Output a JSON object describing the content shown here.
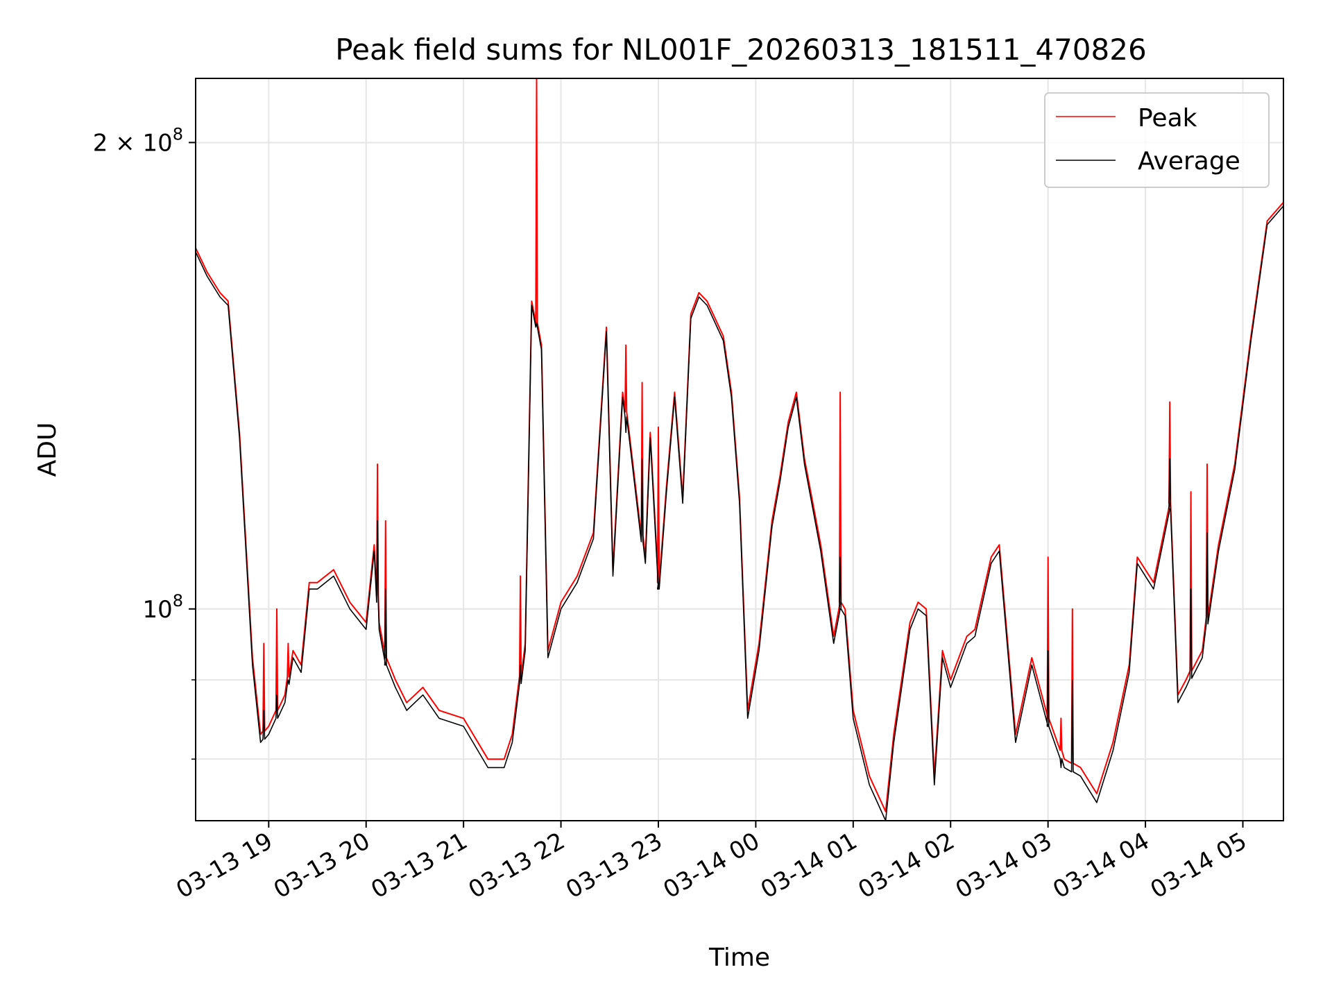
{
  "chart_data": {
    "type": "line",
    "title": "Peak field sums for NL001F_20260313_181511_470826",
    "xlabel": "Time",
    "ylabel": "ADU",
    "x_range": [
      "03-13 18:15",
      "03-14 05:25"
    ],
    "y_range": [
      73000000,
      220000000
    ],
    "y_scale": "log",
    "grid": true,
    "legend_position": "top-right",
    "x_ticks": [
      {
        "value": "03-13 19:00",
        "label": "03-13 19"
      },
      {
        "value": "03-13 20:00",
        "label": "03-13 20"
      },
      {
        "value": "03-13 21:00",
        "label": "03-13 21"
      },
      {
        "value": "03-13 22:00",
        "label": "03-13 22"
      },
      {
        "value": "03-13 23:00",
        "label": "03-13 23"
      },
      {
        "value": "03-14 00:00",
        "label": "03-14 00"
      },
      {
        "value": "03-14 01:00",
        "label": "03-14 01"
      },
      {
        "value": "03-14 02:00",
        "label": "03-14 02"
      },
      {
        "value": "03-14 03:00",
        "label": "03-14 03"
      },
      {
        "value": "03-14 04:00",
        "label": "03-14 04"
      },
      {
        "value": "03-14 05:00",
        "label": "03-14 05"
      }
    ],
    "y_ticks_major": [
      {
        "value": 100000000,
        "base": "10",
        "exp": "8",
        "coef": ""
      },
      {
        "value": 200000000,
        "base": "10",
        "exp": "8",
        "coef": "2 × "
      }
    ],
    "y_ticks_minor": [
      80000000,
      90000000
    ],
    "x": [
      "03-13 18:15",
      "03-13 18:22",
      "03-13 18:30",
      "03-13 18:35",
      "03-13 18:42",
      "03-13 18:50",
      "03-13 18:55",
      "03-13 19:00",
      "03-13 19:10",
      "03-13 19:15",
      "03-13 19:20",
      "03-13 19:25",
      "03-13 19:30",
      "03-13 19:40",
      "03-13 19:50",
      "03-13 20:00",
      "03-13 20:05",
      "03-13 20:08",
      "03-13 20:12",
      "03-13 20:18",
      "03-13 20:25",
      "03-13 20:35",
      "03-13 20:45",
      "03-13 21:00",
      "03-13 21:15",
      "03-13 21:25",
      "03-13 21:30",
      "03-13 21:38",
      "03-13 21:42",
      "03-13 21:48",
      "03-13 21:52",
      "03-13 22:00",
      "03-13 22:10",
      "03-13 22:20",
      "03-13 22:28",
      "03-13 22:32",
      "03-13 22:38",
      "03-13 22:42",
      "03-13 22:48",
      "03-13 22:52",
      "03-13 22:55",
      "03-13 23:00",
      "03-13 23:05",
      "03-13 23:10",
      "03-13 23:15",
      "03-13 23:20",
      "03-13 23:25",
      "03-13 23:30",
      "03-13 23:40",
      "03-13 23:45",
      "03-13 23:50",
      "03-13 23:55",
      "03-14 00:02",
      "03-14 00:10",
      "03-14 00:15",
      "03-14 00:20",
      "03-14 00:25",
      "03-14 00:30",
      "03-14 00:40",
      "03-14 00:48",
      "03-14 00:52",
      "03-14 00:55",
      "03-14 01:00",
      "03-14 01:10",
      "03-14 01:20",
      "03-14 01:25",
      "03-14 01:35",
      "03-14 01:40",
      "03-14 01:45",
      "03-14 01:50",
      "03-14 01:55",
      "03-14 02:00",
      "03-14 02:10",
      "03-14 02:15",
      "03-14 02:25",
      "03-14 02:30",
      "03-14 02:40",
      "03-14 02:50",
      "03-14 03:00",
      "03-14 03:10",
      "03-14 03:20",
      "03-14 03:30",
      "03-14 03:40",
      "03-14 03:50",
      "03-14 03:55",
      "03-14 04:05",
      "03-14 04:15",
      "03-14 04:20",
      "03-14 04:25",
      "03-14 04:35",
      "03-14 04:45",
      "03-14 04:55",
      "03-14 05:05",
      "03-14 05:15",
      "03-14 05:25"
    ],
    "series": [
      {
        "name": "Peak",
        "color": "#ff0000",
        "values": [
          171000000,
          165000000,
          160000000,
          158000000,
          130000000,
          93000000,
          83000000,
          84000000,
          88000000,
          94000000,
          92000000,
          104000000,
          104000000,
          106000000,
          101000000,
          98000000,
          110000000,
          98000000,
          93000000,
          90000000,
          87000000,
          89000000,
          86000000,
          85000000,
          80000000,
          80000000,
          83000000,
          95000000,
          158000000,
          148000000,
          94000000,
          101000000,
          105000000,
          112000000,
          152000000,
          106000000,
          138000000,
          130000000,
          115000000,
          108000000,
          130000000,
          104000000,
          120000000,
          138000000,
          118000000,
          155000000,
          160000000,
          158000000,
          150000000,
          138000000,
          118000000,
          86000000,
          95000000,
          114000000,
          122000000,
          132000000,
          138000000,
          125000000,
          110000000,
          96000000,
          101000000,
          100000000,
          86000000,
          78000000,
          74000000,
          83000000,
          98000000,
          101000000,
          100000000,
          78000000,
          94000000,
          90000000,
          96000000,
          97000000,
          108000000,
          110000000,
          83000000,
          93000000,
          85000000,
          80000000,
          79000000,
          76000000,
          82000000,
          92000000,
          108000000,
          104000000,
          117000000,
          88000000,
          90000000,
          94000000,
          110000000,
          124000000,
          150000000,
          178000000,
          183000000
        ]
      },
      {
        "name": "Average",
        "color": "#000000",
        "values": [
          170000000,
          164000000,
          159000000,
          157000000,
          129000000,
          92000000,
          82000000,
          83000000,
          87000000,
          93000000,
          91000000,
          103000000,
          103000000,
          105000000,
          100000000,
          97000000,
          109000000,
          97000000,
          92000000,
          89000000,
          86000000,
          88000000,
          85000000,
          84000000,
          79000000,
          79000000,
          82000000,
          94000000,
          157000000,
          147000000,
          93000000,
          100000000,
          104000000,
          111000000,
          151000000,
          105000000,
          137000000,
          129000000,
          114000000,
          107000000,
          129000000,
          103000000,
          119000000,
          137000000,
          117000000,
          154000000,
          159000000,
          157000000,
          149000000,
          137000000,
          117000000,
          85000000,
          94000000,
          113000000,
          121000000,
          131000000,
          137000000,
          124000000,
          109000000,
          95000000,
          100000000,
          99000000,
          85000000,
          77000000,
          73000000,
          82000000,
          97000000,
          100000000,
          99000000,
          77000000,
          93000000,
          89000000,
          95000000,
          96000000,
          107000000,
          109000000,
          82000000,
          92000000,
          84000000,
          79000000,
          78000000,
          75000000,
          81000000,
          91000000,
          107000000,
          103000000,
          116000000,
          87000000,
          89000000,
          93000000,
          109000000,
          123000000,
          149000000,
          177000000,
          182000000
        ]
      }
    ],
    "spikes": [
      {
        "x": "03-13 18:57",
        "peak": 95000000,
        "avg": 86000000
      },
      {
        "x": "03-13 19:05",
        "peak": 100000000,
        "avg": 88000000
      },
      {
        "x": "03-13 19:12",
        "peak": 95000000,
        "avg": 90000000
      },
      {
        "x": "03-13 20:07",
        "peak": 124000000,
        "avg": 114000000
      },
      {
        "x": "03-13 20:12",
        "peak": 114000000,
        "avg": 103000000
      },
      {
        "x": "03-13 21:35",
        "peak": 105000000,
        "avg": 92000000
      },
      {
        "x": "03-13 21:45",
        "peak": 220000000,
        "avg": 153000000
      },
      {
        "x": "03-13 22:40",
        "peak": 148000000,
        "avg": 130000000
      },
      {
        "x": "03-13 22:50",
        "peak": 140000000,
        "avg": 125000000
      },
      {
        "x": "03-13 23:00",
        "peak": 131000000,
        "avg": 104000000
      },
      {
        "x": "03-14 00:52",
        "peak": 138000000,
        "avg": 108000000
      },
      {
        "x": "03-14 03:00",
        "peak": 108000000,
        "avg": 94000000
      },
      {
        "x": "03-14 03:08",
        "peak": 85000000,
        "avg": 79000000
      },
      {
        "x": "03-14 03:15",
        "peak": 100000000,
        "avg": 90000000
      },
      {
        "x": "03-14 04:15",
        "peak": 136000000,
        "avg": 125000000
      },
      {
        "x": "03-14 04:28",
        "peak": 119000000,
        "avg": 103000000
      },
      {
        "x": "03-14 04:38",
        "peak": 124000000,
        "avg": 112000000
      }
    ]
  }
}
